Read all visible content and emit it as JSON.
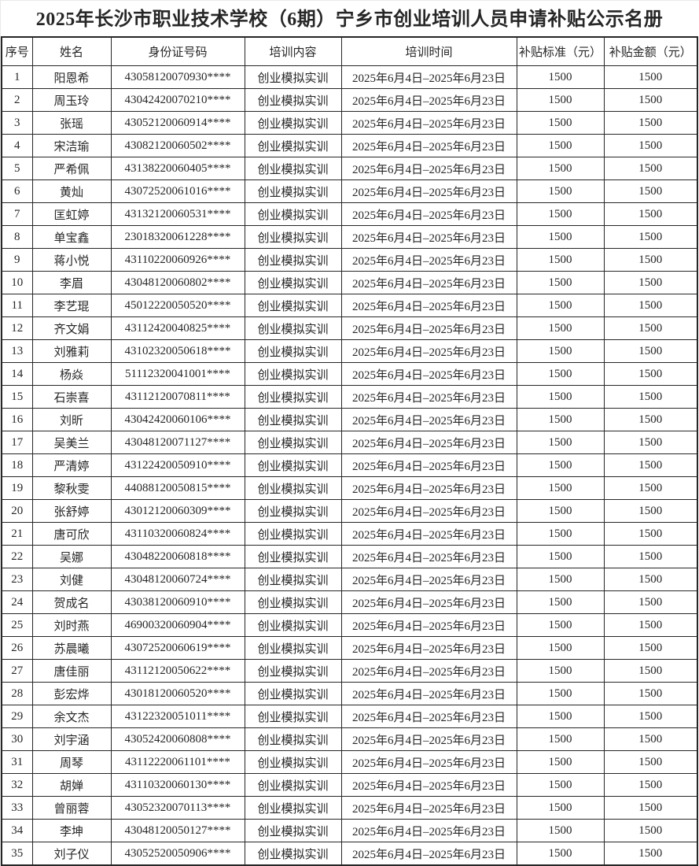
{
  "title": "2025年长沙市职业技术学校（6期）宁乡市创业培训人员申请补贴公示名册",
  "table": {
    "headers": [
      "序号",
      "姓名",
      "身份证号码",
      "培训内容",
      "培训时间",
      "补贴标准（元）",
      "补贴金额（元）"
    ],
    "rows": [
      {
        "no": "1",
        "name": "阳恩希",
        "id": "43058120070930****",
        "content": "创业模拟实训",
        "period": "2025年6月4日–2025年6月23日",
        "standard": "1500",
        "amount": "1500"
      },
      {
        "no": "2",
        "name": "周玉玲",
        "id": "43042420070210****",
        "content": "创业模拟实训",
        "period": "2025年6月4日–2025年6月23日",
        "standard": "1500",
        "amount": "1500"
      },
      {
        "no": "3",
        "name": "张瑶",
        "id": "43052120060914****",
        "content": "创业模拟实训",
        "period": "2025年6月4日–2025年6月23日",
        "standard": "1500",
        "amount": "1500"
      },
      {
        "no": "4",
        "name": "宋洁瑜",
        "id": "43082120060502****",
        "content": "创业模拟实训",
        "period": "2025年6月4日–2025年6月23日",
        "standard": "1500",
        "amount": "1500"
      },
      {
        "no": "5",
        "name": "严希佩",
        "id": "43138220060405****",
        "content": "创业模拟实训",
        "period": "2025年6月4日–2025年6月23日",
        "standard": "1500",
        "amount": "1500"
      },
      {
        "no": "6",
        "name": "黄灿",
        "id": "43072520061016****",
        "content": "创业模拟实训",
        "period": "2025年6月4日–2025年6月23日",
        "standard": "1500",
        "amount": "1500"
      },
      {
        "no": "7",
        "name": "匡虹婷",
        "id": "43132120060531****",
        "content": "创业模拟实训",
        "period": "2025年6月4日–2025年6月23日",
        "standard": "1500",
        "amount": "1500"
      },
      {
        "no": "8",
        "name": "单宝鑫",
        "id": "23018320061228****",
        "content": "创业模拟实训",
        "period": "2025年6月4日–2025年6月23日",
        "standard": "1500",
        "amount": "1500"
      },
      {
        "no": "9",
        "name": "蒋小悦",
        "id": "43110220060926****",
        "content": "创业模拟实训",
        "period": "2025年6月4日–2025年6月23日",
        "standard": "1500",
        "amount": "1500"
      },
      {
        "no": "10",
        "name": "李眉",
        "id": "43048120060802****",
        "content": "创业模拟实训",
        "period": "2025年6月4日–2025年6月23日",
        "standard": "1500",
        "amount": "1500"
      },
      {
        "no": "11",
        "name": "李艺琨",
        "id": "45012220050520****",
        "content": "创业模拟实训",
        "period": "2025年6月4日–2025年6月23日",
        "standard": "1500",
        "amount": "1500"
      },
      {
        "no": "12",
        "name": "齐文娟",
        "id": "43112420040825****",
        "content": "创业模拟实训",
        "period": "2025年6月4日–2025年6月23日",
        "standard": "1500",
        "amount": "1500"
      },
      {
        "no": "13",
        "name": "刘雅莉",
        "id": "43102320050618****",
        "content": "创业模拟实训",
        "period": "2025年6月4日–2025年6月23日",
        "standard": "1500",
        "amount": "1500"
      },
      {
        "no": "14",
        "name": "杨焱",
        "id": "51112320041001****",
        "content": "创业模拟实训",
        "period": "2025年6月4日–2025年6月23日",
        "standard": "1500",
        "amount": "1500"
      },
      {
        "no": "15",
        "name": "石崇喜",
        "id": "43112120070811****",
        "content": "创业模拟实训",
        "period": "2025年6月4日–2025年6月23日",
        "standard": "1500",
        "amount": "1500"
      },
      {
        "no": "16",
        "name": "刘昕",
        "id": "43042420060106****",
        "content": "创业模拟实训",
        "period": "2025年6月4日–2025年6月23日",
        "standard": "1500",
        "amount": "1500"
      },
      {
        "no": "17",
        "name": "吴美兰",
        "id": "43048120071127****",
        "content": "创业模拟实训",
        "period": "2025年6月4日–2025年6月23日",
        "standard": "1500",
        "amount": "1500"
      },
      {
        "no": "18",
        "name": "严清婷",
        "id": "43122420050910****",
        "content": "创业模拟实训",
        "period": "2025年6月4日–2025年6月23日",
        "standard": "1500",
        "amount": "1500"
      },
      {
        "no": "19",
        "name": "黎秋雯",
        "id": "44088120050815****",
        "content": "创业模拟实训",
        "period": "2025年6月4日–2025年6月23日",
        "standard": "1500",
        "amount": "1500"
      },
      {
        "no": "20",
        "name": "张舒婷",
        "id": "43012120060309****",
        "content": "创业模拟实训",
        "period": "2025年6月4日–2025年6月23日",
        "standard": "1500",
        "amount": "1500"
      },
      {
        "no": "21",
        "name": "唐可欣",
        "id": "43110320060824****",
        "content": "创业模拟实训",
        "period": "2025年6月4日–2025年6月23日",
        "standard": "1500",
        "amount": "1500"
      },
      {
        "no": "22",
        "name": "吴娜",
        "id": "43048220060818****",
        "content": "创业模拟实训",
        "period": "2025年6月4日–2025年6月23日",
        "standard": "1500",
        "amount": "1500"
      },
      {
        "no": "23",
        "name": "刘健",
        "id": "43048120060724****",
        "content": "创业模拟实训",
        "period": "2025年6月4日–2025年6月23日",
        "standard": "1500",
        "amount": "1500"
      },
      {
        "no": "24",
        "name": "贺成名",
        "id": "43038120060910****",
        "content": "创业模拟实训",
        "period": "2025年6月4日–2025年6月23日",
        "standard": "1500",
        "amount": "1500"
      },
      {
        "no": "25",
        "name": "刘时燕",
        "id": "46900320060904****",
        "content": "创业模拟实训",
        "period": "2025年6月4日–2025年6月23日",
        "standard": "1500",
        "amount": "1500"
      },
      {
        "no": "26",
        "name": "苏晨曦",
        "id": "43072520060619****",
        "content": "创业模拟实训",
        "period": "2025年6月4日–2025年6月23日",
        "standard": "1500",
        "amount": "1500"
      },
      {
        "no": "27",
        "name": "唐佳丽",
        "id": "43112120050622****",
        "content": "创业模拟实训",
        "period": "2025年6月4日–2025年6月23日",
        "standard": "1500",
        "amount": "1500"
      },
      {
        "no": "28",
        "name": "彭宏烨",
        "id": "43018120060520****",
        "content": "创业模拟实训",
        "period": "2025年6月4日–2025年6月23日",
        "standard": "1500",
        "amount": "1500"
      },
      {
        "no": "29",
        "name": "余文杰",
        "id": "43122320051011****",
        "content": "创业模拟实训",
        "period": "2025年6月4日–2025年6月23日",
        "standard": "1500",
        "amount": "1500"
      },
      {
        "no": "30",
        "name": "刘宇涵",
        "id": "43052420060808****",
        "content": "创业模拟实训",
        "period": "2025年6月4日–2025年6月23日",
        "standard": "1500",
        "amount": "1500"
      },
      {
        "no": "31",
        "name": "周琴",
        "id": "43112220061101****",
        "content": "创业模拟实训",
        "period": "2025年6月4日–2025年6月23日",
        "standard": "1500",
        "amount": "1500"
      },
      {
        "no": "32",
        "name": "胡婵",
        "id": "43110320060130****",
        "content": "创业模拟实训",
        "period": "2025年6月4日–2025年6月23日",
        "standard": "1500",
        "amount": "1500"
      },
      {
        "no": "33",
        "name": "曾丽蓉",
        "id": "43052320070113****",
        "content": "创业模拟实训",
        "period": "2025年6月4日–2025年6月23日",
        "standard": "1500",
        "amount": "1500"
      },
      {
        "no": "34",
        "name": "李坤",
        "id": "43048120050127****",
        "content": "创业模拟实训",
        "period": "2025年6月4日–2025年6月23日",
        "standard": "1500",
        "amount": "1500"
      },
      {
        "no": "35",
        "name": "刘子仪",
        "id": "43052520050906****",
        "content": "创业模拟实训",
        "period": "2025年6月4日–2025年6月23日",
        "standard": "1500",
        "amount": "1500"
      }
    ]
  }
}
